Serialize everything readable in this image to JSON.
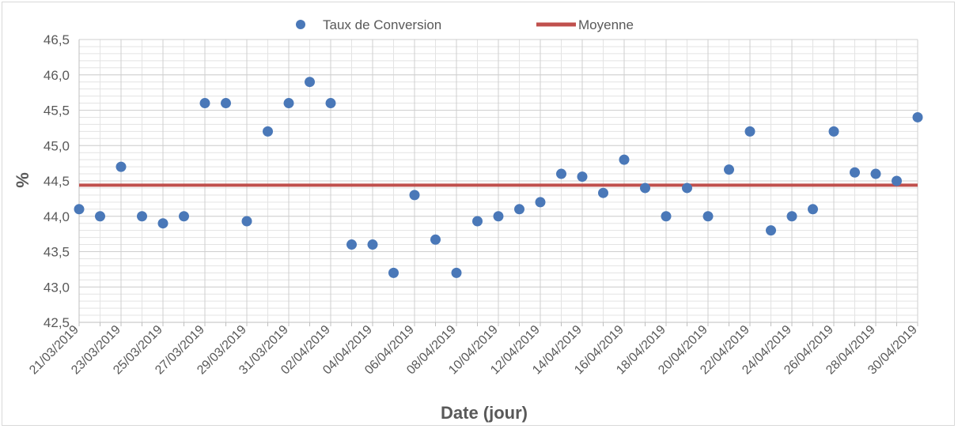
{
  "chart_data": {
    "type": "scatter",
    "title": "",
    "xlabel": "Date (jour)",
    "ylabel": "%",
    "ylim": [
      42.5,
      46.5
    ],
    "yticks": [
      "42,5",
      "43,0",
      "43,5",
      "44,0",
      "44,5",
      "45,0",
      "45,5",
      "46,0",
      "46,5"
    ],
    "x": [
      "21/03/2019",
      "22/03/2019",
      "23/03/2019",
      "24/03/2019",
      "25/03/2019",
      "26/03/2019",
      "27/03/2019",
      "28/03/2019",
      "29/03/2019",
      "30/03/2019",
      "31/03/2019",
      "01/04/2019",
      "02/04/2019",
      "03/04/2019",
      "04/04/2019",
      "05/04/2019",
      "06/04/2019",
      "07/04/2019",
      "08/04/2019",
      "09/04/2019",
      "10/04/2019",
      "11/04/2019",
      "12/04/2019",
      "13/04/2019",
      "14/04/2019",
      "15/04/2019",
      "16/04/2019",
      "17/04/2019",
      "18/04/2019",
      "19/04/2019",
      "20/04/2019",
      "21/04/2019",
      "22/04/2019",
      "23/04/2019",
      "24/04/2019",
      "25/04/2019",
      "26/04/2019",
      "27/04/2019",
      "28/04/2019",
      "29/04/2019",
      "30/04/2019"
    ],
    "xticks": [
      "21/03/2019",
      "23/03/2019",
      "25/03/2019",
      "27/03/2019",
      "29/03/2019",
      "31/03/2019",
      "02/04/2019",
      "04/04/2019",
      "06/04/2019",
      "08/04/2019",
      "10/04/2019",
      "12/04/2019",
      "14/04/2019",
      "16/04/2019",
      "18/04/2019",
      "20/04/2019",
      "22/04/2019",
      "24/04/2019",
      "26/04/2019",
      "28/04/2019",
      "30/04/2019"
    ],
    "series": [
      {
        "name": "Taux de Conversion",
        "kind": "scatter",
        "color": "#4a78b8",
        "values": [
          44.1,
          44.0,
          44.7,
          44.0,
          43.9,
          44.0,
          45.6,
          45.6,
          43.93,
          45.2,
          45.6,
          45.9,
          45.6,
          43.6,
          43.6,
          43.2,
          44.3,
          43.67,
          43.2,
          43.93,
          44.0,
          44.1,
          44.2,
          44.6,
          44.56,
          44.33,
          44.8,
          44.4,
          44.0,
          44.4,
          44.0,
          44.66,
          45.2,
          43.8,
          44.0,
          44.1,
          45.2,
          44.62,
          44.6,
          44.5,
          45.4
        ]
      },
      {
        "name": "Moyenne",
        "kind": "line",
        "color": "#c0504d",
        "value": 44.44
      }
    ],
    "grid": true,
    "legend": "top"
  }
}
